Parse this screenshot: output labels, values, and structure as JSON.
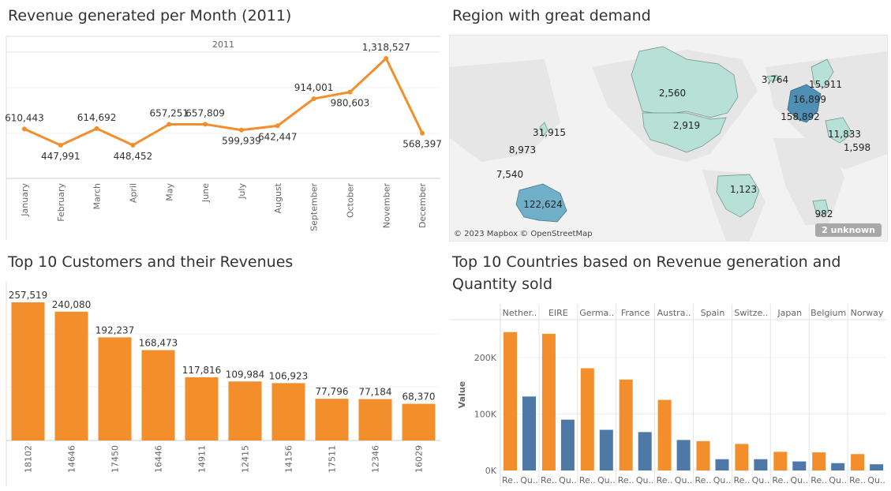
{
  "colors": {
    "orange": "#f28e2b",
    "blue": "#4e79a7",
    "map_light": "#b7e0d6",
    "map_mid": "#6fb0c8",
    "map_dark": "#3a7fa6",
    "land": "#e4e4e4"
  },
  "panels": {
    "revenue_month": {
      "title": "Revenue generated per Month (2011)"
    },
    "region": {
      "title": "Region with great demand"
    },
    "top_customers": {
      "title": "Top 10 Customers and their Revenues"
    },
    "top_countries": {
      "title_line1": "Top 10 Countries based on Revenue generation and",
      "title_line2": "Quantity sold"
    }
  },
  "map": {
    "attribution": "© 2023 Mapbox © OpenStreetMap",
    "unknown_badge": "2 unknown",
    "labels": [
      {
        "region": "Canada",
        "text": "2,560"
      },
      {
        "region": "USA",
        "text": "2,919"
      },
      {
        "region": "Iceland",
        "text": "3,764"
      },
      {
        "region": "Scandinavia",
        "text": "15,911"
      },
      {
        "region": "Central Europe",
        "text": "16,899"
      },
      {
        "region": "Western Europe",
        "text": "158,892"
      },
      {
        "region": "Middle East",
        "text": "11,833"
      },
      {
        "region": "Eastern Mediterranean",
        "text": "1,598"
      },
      {
        "region": "Japan",
        "text": "31,915"
      },
      {
        "region": "East Asia",
        "text": "8,973"
      },
      {
        "region": "Southeast Asia",
        "text": "7,540"
      },
      {
        "region": "Australia",
        "text": "122,624"
      },
      {
        "region": "Brazil",
        "text": "1,123"
      },
      {
        "region": "South Africa",
        "text": "982"
      }
    ]
  },
  "chart_data": [
    {
      "type": "line",
      "title": "Revenue generated per Month (2011)",
      "header": "2011",
      "categories": [
        "January",
        "February",
        "March",
        "April",
        "May",
        "June",
        "July",
        "August",
        "September",
        "October",
        "November",
        "December"
      ],
      "values": [
        610443,
        447991,
        614692,
        448452,
        657251,
        657809,
        599939,
        642447,
        914001,
        980603,
        1318527,
        568397
      ],
      "value_labels": [
        "610,443",
        "447,991",
        "614,692",
        "448,452",
        "657,251",
        "657,809",
        "599,939",
        "642,447",
        "914,001",
        "980,603",
        "1,318,527",
        "568,397"
      ],
      "color": "#f28e2b"
    },
    {
      "type": "bar",
      "title": "Top 10 Customers and their Revenues",
      "categories": [
        "18102",
        "14646",
        "17450",
        "16446",
        "14911",
        "12415",
        "14156",
        "17511",
        "12346",
        "16029"
      ],
      "values": [
        257519,
        240080,
        192237,
        168473,
        117816,
        109984,
        106923,
        77796,
        77184,
        68370
      ],
      "value_labels": [
        "257,519",
        "240,080",
        "192,237",
        "168,473",
        "117,816",
        "109,984",
        "106,923",
        "77,796",
        "77,184",
        "68,370"
      ],
      "color": "#f28e2b"
    },
    {
      "type": "bar",
      "title": "Top 10 Countries based on Revenue generation and Quantity sold",
      "countries": [
        "Nether..",
        "EIRE",
        "Germa..",
        "France",
        "Austra..",
        "Spain",
        "Switze..",
        "Japan",
        "Belgium",
        "Norway"
      ],
      "measure_labels": [
        "Re..",
        "Qu.."
      ],
      "ylabel": "Value",
      "yticks": [
        "0K",
        "100K",
        "200K"
      ],
      "series": [
        {
          "name": "Revenue",
          "color": "#f28e2b",
          "values": [
            245000,
            242000,
            181000,
            161000,
            125000,
            52000,
            47000,
            33000,
            32000,
            29000
          ]
        },
        {
          "name": "Quantity",
          "color": "#4e79a7",
          "values": [
            131000,
            90000,
            72000,
            68000,
            54000,
            20000,
            20000,
            16000,
            13000,
            11000
          ]
        }
      ],
      "ylim": [
        0,
        260000
      ]
    }
  ]
}
